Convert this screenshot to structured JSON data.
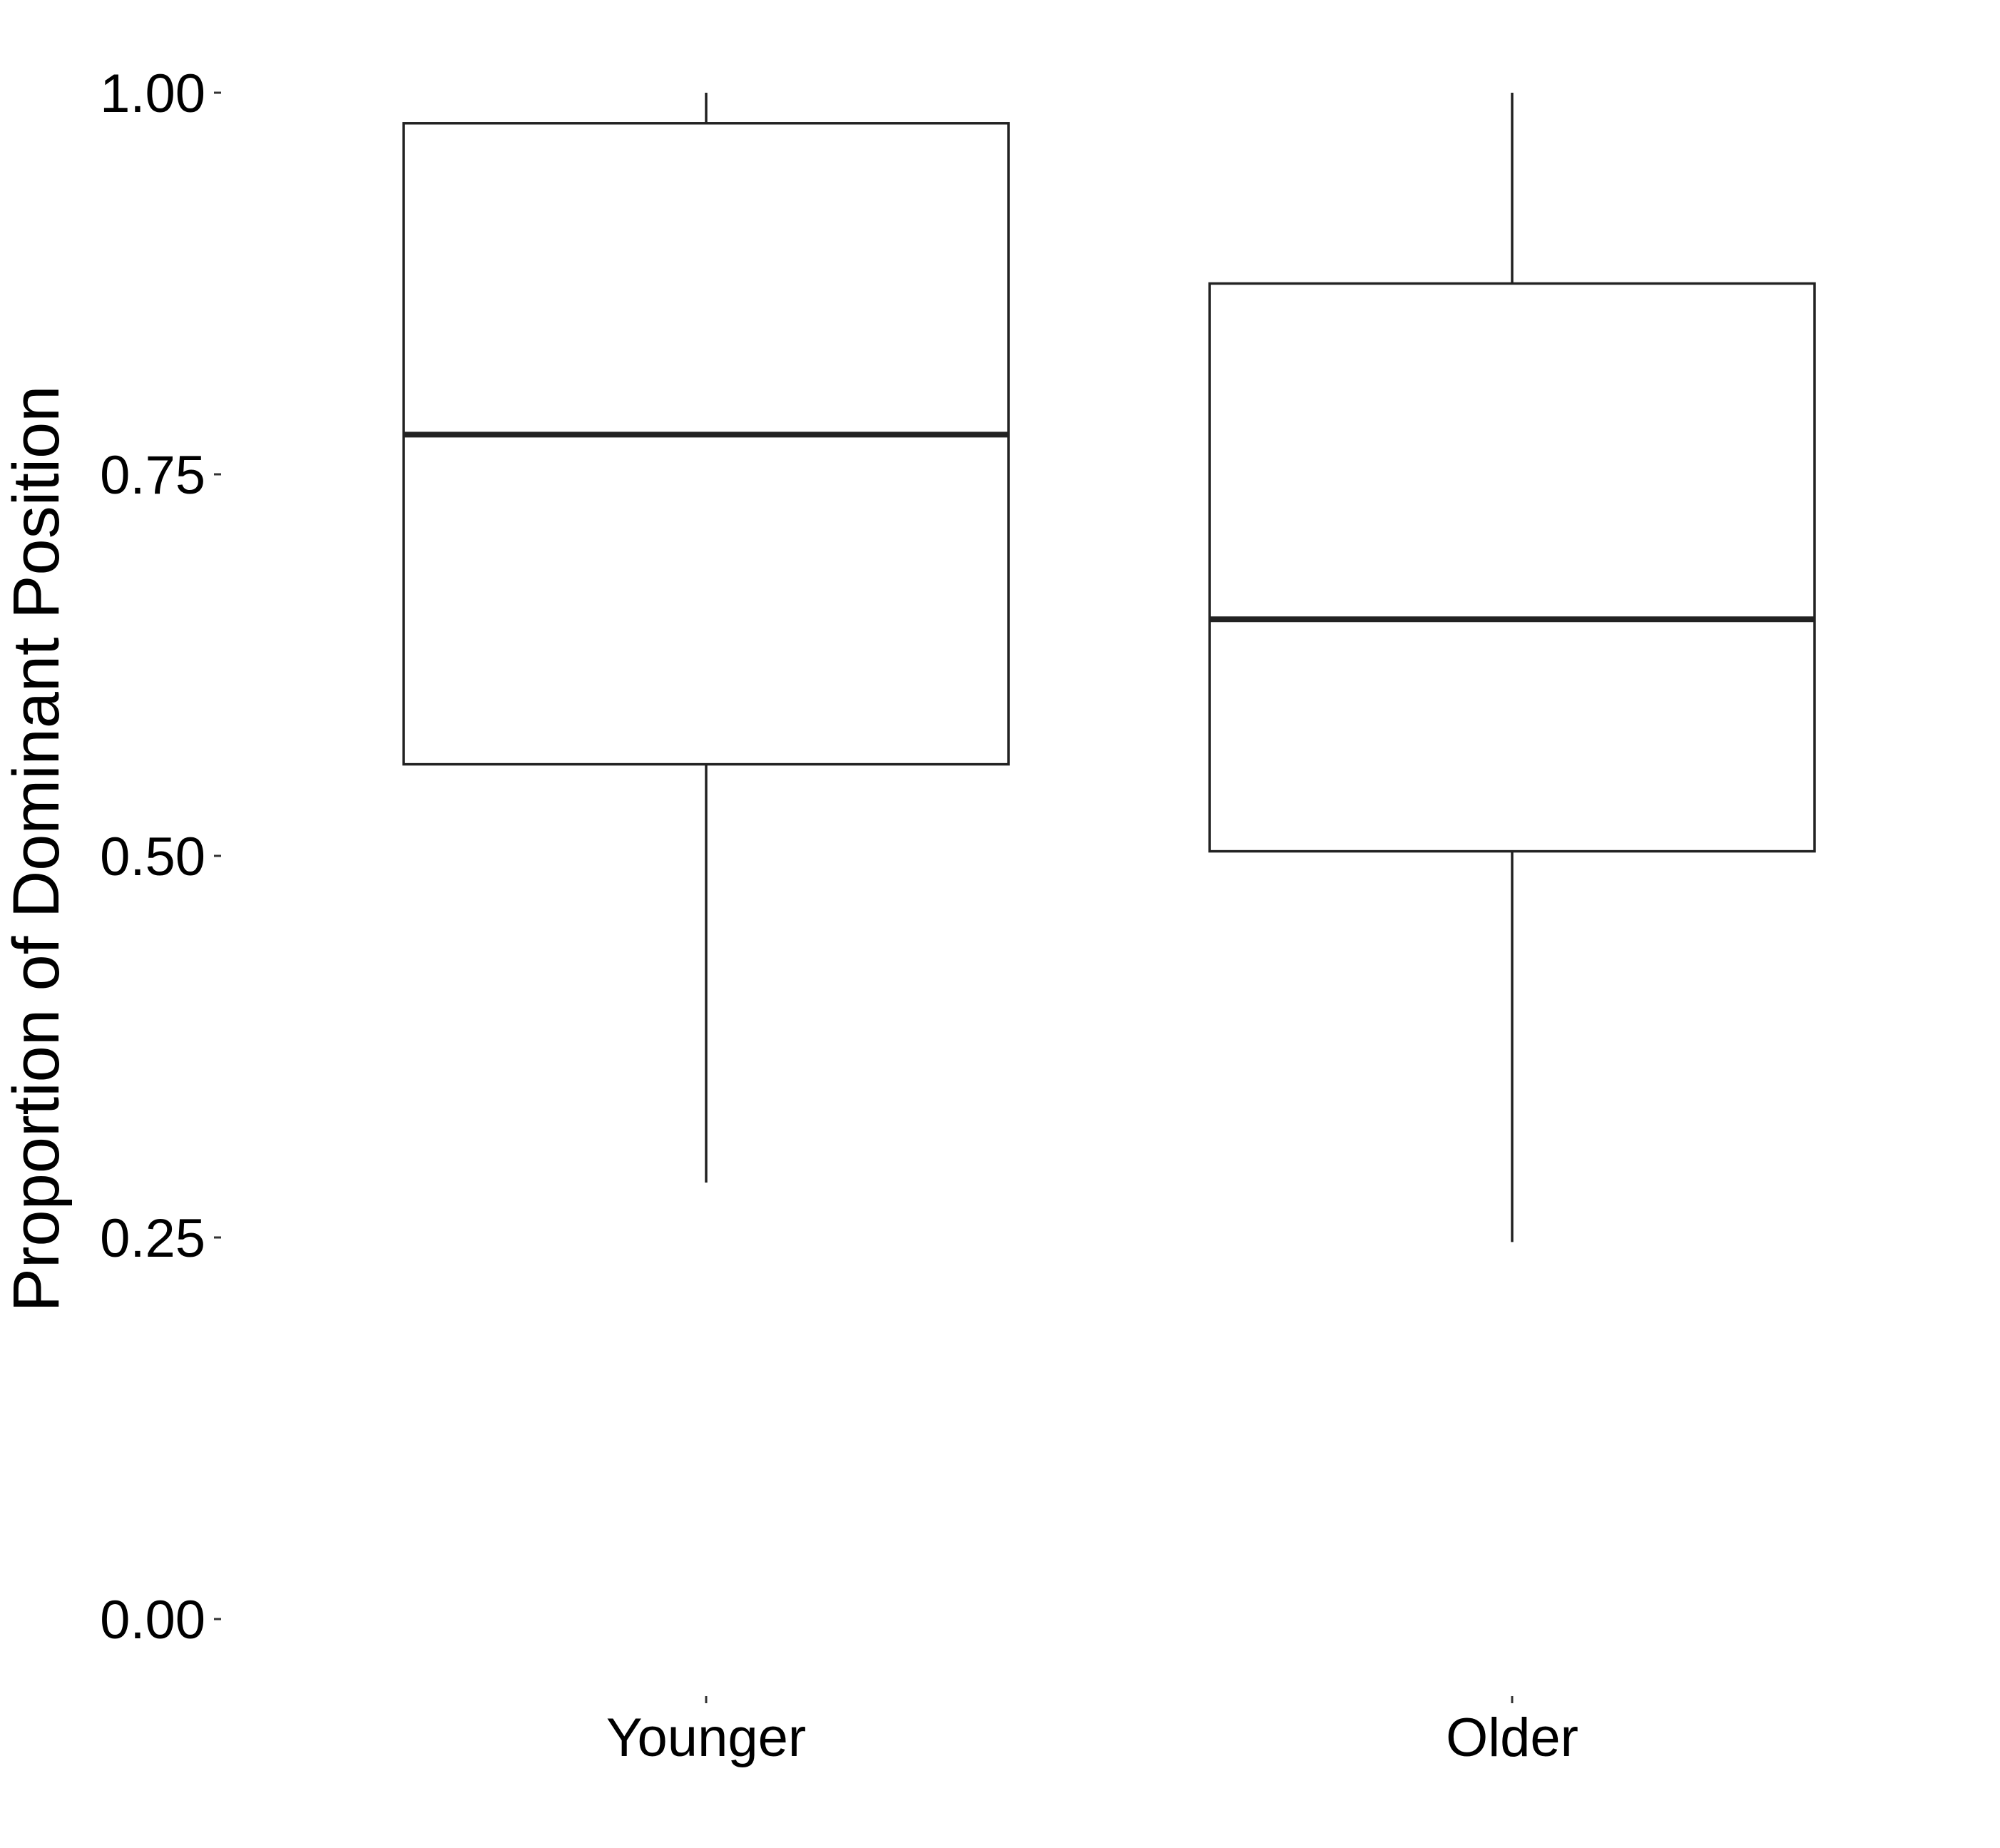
{
  "chart_data": {
    "type": "box",
    "title": "",
    "xlabel": "",
    "ylabel": "Proportion of Dominant Position",
    "ylim": [
      0,
      1
    ],
    "yticks": [
      "0.00",
      "0.25",
      "0.50",
      "0.75",
      "1.00"
    ],
    "grid": false,
    "categories": [
      "Younger",
      "Older"
    ],
    "boxes": [
      {
        "category": "Younger",
        "whisker_low": 0.286,
        "q1": 0.56,
        "median": 0.776,
        "q3": 0.98,
        "whisker_high": 1.0
      },
      {
        "category": "Older",
        "whisker_low": 0.247,
        "q1": 0.503,
        "median": 0.655,
        "q3": 0.875,
        "whisker_high": 1.0
      }
    ],
    "colors": {
      "box_stroke": "#222222",
      "box_fill": "#ffffff",
      "median": "#222222"
    }
  }
}
